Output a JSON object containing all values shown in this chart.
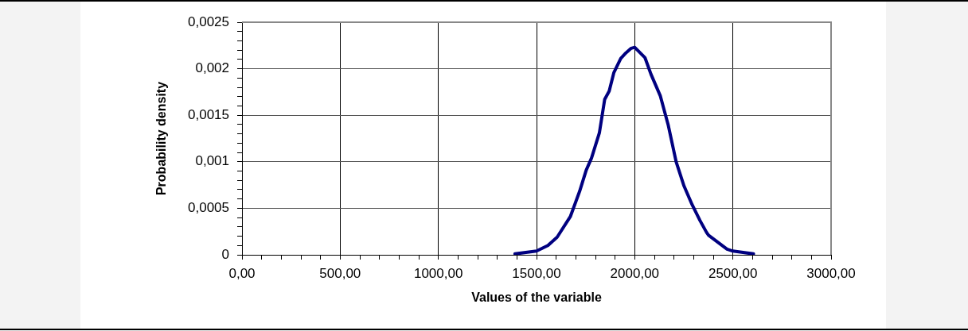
{
  "chart_data": {
    "type": "line",
    "xlabel": "Values of the variable",
    "ylabel": "Probability density",
    "series": [
      {
        "color": "#000080",
        "x": [
          1390,
          1500,
          1558,
          1605,
          1672,
          1719,
          1753,
          1780,
          1820,
          1847,
          1870,
          1894,
          1929,
          1955,
          1982,
          2000,
          2052,
          2083,
          2130,
          2170,
          2211,
          2251,
          2292,
          2332,
          2366,
          2376,
          2470,
          2500,
          2605
        ],
        "values": [
          1e-05,
          4e-05,
          0.0001,
          0.00019,
          0.00041,
          0.00068,
          0.00091,
          0.00104,
          0.00131,
          0.00167,
          0.00176,
          0.00196,
          0.00211,
          0.00217,
          0.00222,
          0.00223,
          0.00212,
          0.00194,
          0.00171,
          0.0014,
          0.001,
          0.00074,
          0.00054,
          0.00037,
          0.00024,
          0.00021,
          6e-05,
          4e-05,
          1e-05
        ]
      }
    ],
    "xlim": [
      0,
      3000
    ],
    "xticks": [
      {
        "value": 0,
        "label": "0,00"
      },
      {
        "value": 100,
        "label": null
      },
      {
        "value": 200,
        "label": null
      },
      {
        "value": 300,
        "label": null
      },
      {
        "value": 400,
        "label": null
      },
      {
        "value": 500,
        "label": "500,00"
      },
      {
        "value": 600,
        "label": null
      },
      {
        "value": 700,
        "label": null
      },
      {
        "value": 800,
        "label": null
      },
      {
        "value": 900,
        "label": null
      },
      {
        "value": 1000,
        "label": "1000,00"
      },
      {
        "value": 1100,
        "label": null
      },
      {
        "value": 1200,
        "label": null
      },
      {
        "value": 1300,
        "label": null
      },
      {
        "value": 1400,
        "label": null
      },
      {
        "value": 1500,
        "label": "1500,00"
      },
      {
        "value": 1600,
        "label": null
      },
      {
        "value": 1700,
        "label": null
      },
      {
        "value": 1800,
        "label": null
      },
      {
        "value": 1900,
        "label": null
      },
      {
        "value": 2000,
        "label": "2000,00"
      },
      {
        "value": 2100,
        "label": null
      },
      {
        "value": 2200,
        "label": null
      },
      {
        "value": 2300,
        "label": null
      },
      {
        "value": 2400,
        "label": null
      },
      {
        "value": 2500,
        "label": "2500,00"
      },
      {
        "value": 2600,
        "label": null
      },
      {
        "value": 2700,
        "label": null
      },
      {
        "value": 2800,
        "label": null
      },
      {
        "value": 2900,
        "label": null
      },
      {
        "value": 3000,
        "label": "3000,00"
      }
    ],
    "ylim": [
      0,
      0.0025
    ],
    "yticks": [
      {
        "value": 0,
        "label": "0"
      },
      {
        "value": 0.0001,
        "label": null
      },
      {
        "value": 0.0002,
        "label": null
      },
      {
        "value": 0.0003,
        "label": null
      },
      {
        "value": 0.0004,
        "label": null
      },
      {
        "value": 0.0005,
        "label": "0,0005"
      },
      {
        "value": 0.0006,
        "label": null
      },
      {
        "value": 0.0007,
        "label": null
      },
      {
        "value": 0.0008,
        "label": null
      },
      {
        "value": 0.0009,
        "label": null
      },
      {
        "value": 0.001,
        "label": "0,001"
      },
      {
        "value": 0.0011,
        "label": null
      },
      {
        "value": 0.0012,
        "label": null
      },
      {
        "value": 0.0013,
        "label": null
      },
      {
        "value": 0.0014,
        "label": null
      },
      {
        "value": 0.0015,
        "label": "0,0015"
      },
      {
        "value": 0.0016,
        "label": null
      },
      {
        "value": 0.0017,
        "label": null
      },
      {
        "value": 0.0018,
        "label": null
      },
      {
        "value": 0.0019,
        "label": null
      },
      {
        "value": 0.002,
        "label": "0,002"
      },
      {
        "value": 0.0021,
        "label": null
      },
      {
        "value": 0.0022,
        "label": null
      },
      {
        "value": 0.0023,
        "label": null
      },
      {
        "value": 0.0024,
        "label": null
      },
      {
        "value": 0.0025,
        "label": "0,0025"
      }
    ],
    "grid": true,
    "legend": false,
    "marker": "none",
    "line_style": "solid"
  }
}
